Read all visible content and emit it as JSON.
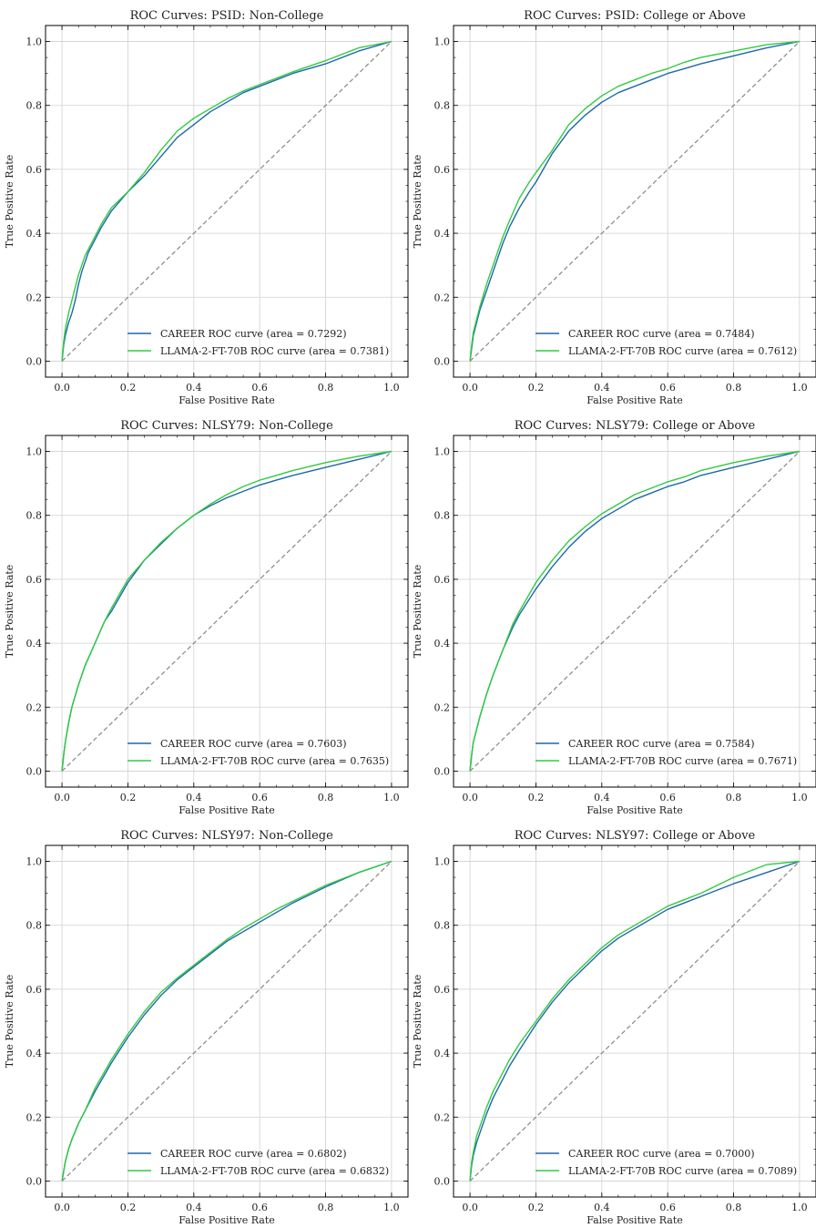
{
  "chart_data": [
    {
      "type": "line",
      "title": "ROC Curves: PSID: Non-College",
      "xlabel": "False Positive Rate",
      "ylabel": "True Positive Rate",
      "xlim": [
        -0.05,
        1.05
      ],
      "ylim": [
        -0.05,
        1.05
      ],
      "xticks": [
        "0.0",
        "0.2",
        "0.4",
        "0.6",
        "0.8",
        "1.0"
      ],
      "yticks": [
        "0.0",
        "0.2",
        "0.4",
        "0.6",
        "0.8",
        "1.0"
      ],
      "grid": true,
      "legend_position": "lower right",
      "diagonal": {
        "x": [
          0,
          1
        ],
        "y": [
          0,
          1
        ],
        "style": "dashed",
        "color": "#888888"
      },
      "series": [
        {
          "name": "CAREER ROC curve (area = 0.7292)",
          "color": "#2166ac",
          "x": [
            0,
            0.005,
            0.01,
            0.02,
            0.03,
            0.04,
            0.05,
            0.06,
            0.07,
            0.08,
            0.1,
            0.12,
            0.15,
            0.2,
            0.25,
            0.3,
            0.35,
            0.4,
            0.45,
            0.5,
            0.55,
            0.6,
            0.65,
            0.7,
            0.8,
            0.9,
            1.0
          ],
          "y": [
            0,
            0.05,
            0.08,
            0.12,
            0.15,
            0.19,
            0.24,
            0.28,
            0.31,
            0.34,
            0.38,
            0.42,
            0.47,
            0.53,
            0.58,
            0.64,
            0.7,
            0.74,
            0.78,
            0.81,
            0.84,
            0.86,
            0.88,
            0.9,
            0.93,
            0.97,
            1.0
          ]
        },
        {
          "name": "LLAMA-2-FT-70B ROC curve (area = 0.7381)",
          "color": "#2ecc40",
          "x": [
            0,
            0.005,
            0.01,
            0.02,
            0.03,
            0.04,
            0.05,
            0.06,
            0.07,
            0.08,
            0.1,
            0.12,
            0.15,
            0.2,
            0.25,
            0.3,
            0.35,
            0.4,
            0.45,
            0.5,
            0.55,
            0.6,
            0.65,
            0.7,
            0.8,
            0.9,
            1.0
          ],
          "y": [
            0,
            0.06,
            0.1,
            0.15,
            0.19,
            0.23,
            0.27,
            0.3,
            0.33,
            0.35,
            0.39,
            0.43,
            0.48,
            0.53,
            0.59,
            0.66,
            0.72,
            0.76,
            0.79,
            0.82,
            0.845,
            0.865,
            0.885,
            0.905,
            0.94,
            0.98,
            1.0
          ]
        }
      ]
    },
    {
      "type": "line",
      "title": "ROC Curves: PSID: College or Above",
      "xlabel": "False Positive Rate",
      "ylabel": "True Positive Rate",
      "xlim": [
        -0.05,
        1.05
      ],
      "ylim": [
        -0.05,
        1.05
      ],
      "xticks": [
        "0.0",
        "0.2",
        "0.4",
        "0.6",
        "0.8",
        "1.0"
      ],
      "yticks": [
        "0.0",
        "0.2",
        "0.4",
        "0.6",
        "0.8",
        "1.0"
      ],
      "grid": true,
      "legend_position": "lower right",
      "diagonal": {
        "x": [
          0,
          1
        ],
        "y": [
          0,
          1
        ],
        "style": "dashed",
        "color": "#888888"
      },
      "series": [
        {
          "name": "CAREER ROC curve (area = 0.7484)",
          "color": "#2166ac",
          "x": [
            0,
            0.005,
            0.01,
            0.02,
            0.03,
            0.05,
            0.07,
            0.1,
            0.12,
            0.15,
            0.18,
            0.2,
            0.25,
            0.3,
            0.35,
            0.4,
            0.45,
            0.5,
            0.55,
            0.6,
            0.65,
            0.7,
            0.8,
            0.9,
            1.0
          ],
          "y": [
            0,
            0.04,
            0.08,
            0.12,
            0.16,
            0.22,
            0.28,
            0.37,
            0.42,
            0.48,
            0.53,
            0.56,
            0.65,
            0.72,
            0.77,
            0.81,
            0.84,
            0.86,
            0.88,
            0.9,
            0.915,
            0.93,
            0.955,
            0.98,
            1.0
          ]
        },
        {
          "name": "LLAMA-2-FT-70B ROC curve (area = 0.7612)",
          "color": "#2ecc40",
          "x": [
            0,
            0.005,
            0.01,
            0.02,
            0.03,
            0.05,
            0.07,
            0.1,
            0.12,
            0.15,
            0.18,
            0.2,
            0.25,
            0.3,
            0.35,
            0.4,
            0.45,
            0.5,
            0.55,
            0.6,
            0.65,
            0.7,
            0.8,
            0.9,
            1.0
          ],
          "y": [
            0,
            0.05,
            0.09,
            0.13,
            0.17,
            0.24,
            0.3,
            0.39,
            0.44,
            0.51,
            0.56,
            0.59,
            0.66,
            0.74,
            0.79,
            0.83,
            0.86,
            0.88,
            0.9,
            0.915,
            0.935,
            0.95,
            0.97,
            0.99,
            1.0
          ]
        }
      ]
    },
    {
      "type": "line",
      "title": "ROC Curves: NLSY79: Non-College",
      "xlabel": "False Positive Rate",
      "ylabel": "True Positive Rate",
      "xlim": [
        -0.05,
        1.05
      ],
      "ylim": [
        -0.05,
        1.05
      ],
      "xticks": [
        "0.0",
        "0.2",
        "0.4",
        "0.6",
        "0.8",
        "1.0"
      ],
      "yticks": [
        "0.0",
        "0.2",
        "0.4",
        "0.6",
        "0.8",
        "1.0"
      ],
      "grid": true,
      "legend_position": "lower right",
      "diagonal": {
        "x": [
          0,
          1
        ],
        "y": [
          0,
          1
        ],
        "style": "dashed",
        "color": "#888888"
      },
      "series": [
        {
          "name": "CAREER ROC curve (area = 0.7603)",
          "color": "#2166ac",
          "x": [
            0,
            0.005,
            0.01,
            0.02,
            0.03,
            0.05,
            0.07,
            0.1,
            0.13,
            0.15,
            0.2,
            0.25,
            0.3,
            0.35,
            0.4,
            0.45,
            0.5,
            0.55,
            0.6,
            0.65,
            0.7,
            0.8,
            0.9,
            1.0
          ],
          "y": [
            0,
            0.05,
            0.09,
            0.15,
            0.2,
            0.27,
            0.33,
            0.4,
            0.47,
            0.5,
            0.59,
            0.66,
            0.71,
            0.76,
            0.8,
            0.83,
            0.855,
            0.875,
            0.895,
            0.91,
            0.925,
            0.95,
            0.975,
            1.0
          ]
        },
        {
          "name": "LLAMA-2-FT-70B ROC curve (area = 0.7635)",
          "color": "#2ecc40",
          "x": [
            0,
            0.005,
            0.01,
            0.02,
            0.03,
            0.05,
            0.07,
            0.1,
            0.13,
            0.15,
            0.2,
            0.25,
            0.3,
            0.35,
            0.4,
            0.45,
            0.5,
            0.55,
            0.6,
            0.65,
            0.7,
            0.8,
            0.9,
            1.0
          ],
          "y": [
            0,
            0.05,
            0.09,
            0.15,
            0.2,
            0.27,
            0.33,
            0.4,
            0.47,
            0.51,
            0.6,
            0.66,
            0.715,
            0.76,
            0.8,
            0.835,
            0.865,
            0.89,
            0.91,
            0.925,
            0.94,
            0.965,
            0.985,
            1.0
          ]
        }
      ]
    },
    {
      "type": "line",
      "title": "ROC Curves: NLSY79: College or Above",
      "xlabel": "False Positive Rate",
      "ylabel": "True Positive Rate",
      "xlim": [
        -0.05,
        1.05
      ],
      "ylim": [
        -0.05,
        1.05
      ],
      "xticks": [
        "0.0",
        "0.2",
        "0.4",
        "0.6",
        "0.8",
        "1.0"
      ],
      "yticks": [
        "0.0",
        "0.2",
        "0.4",
        "0.6",
        "0.8",
        "1.0"
      ],
      "grid": true,
      "legend_position": "lower right",
      "diagonal": {
        "x": [
          0,
          1
        ],
        "y": [
          0,
          1
        ],
        "style": "dashed",
        "color": "#888888"
      },
      "series": [
        {
          "name": "CAREER ROC curve (area = 0.7584)",
          "color": "#2166ac",
          "x": [
            0,
            0.005,
            0.01,
            0.02,
            0.03,
            0.05,
            0.07,
            0.1,
            0.13,
            0.15,
            0.2,
            0.25,
            0.3,
            0.35,
            0.4,
            0.45,
            0.5,
            0.55,
            0.6,
            0.65,
            0.7,
            0.8,
            0.9,
            1.0
          ],
          "y": [
            0,
            0.05,
            0.09,
            0.13,
            0.17,
            0.24,
            0.3,
            0.38,
            0.45,
            0.49,
            0.57,
            0.64,
            0.7,
            0.75,
            0.79,
            0.82,
            0.85,
            0.87,
            0.89,
            0.905,
            0.925,
            0.95,
            0.975,
            1.0
          ]
        },
        {
          "name": "LLAMA-2-FT-70B ROC curve (area = 0.7671)",
          "color": "#2ecc40",
          "x": [
            0,
            0.005,
            0.01,
            0.02,
            0.03,
            0.05,
            0.07,
            0.1,
            0.13,
            0.15,
            0.2,
            0.25,
            0.3,
            0.35,
            0.4,
            0.45,
            0.5,
            0.55,
            0.6,
            0.65,
            0.7,
            0.8,
            0.9,
            1.0
          ],
          "y": [
            0,
            0.05,
            0.09,
            0.13,
            0.17,
            0.24,
            0.3,
            0.38,
            0.46,
            0.5,
            0.59,
            0.66,
            0.72,
            0.765,
            0.805,
            0.835,
            0.865,
            0.885,
            0.905,
            0.92,
            0.94,
            0.965,
            0.985,
            1.0
          ]
        }
      ]
    },
    {
      "type": "line",
      "title": "ROC Curves: NLSY97: Non-College",
      "xlabel": "False Positive Rate",
      "ylabel": "True Positive Rate",
      "xlim": [
        -0.05,
        1.05
      ],
      "ylim": [
        -0.05,
        1.05
      ],
      "xticks": [
        "0.0",
        "0.2",
        "0.4",
        "0.6",
        "0.8",
        "1.0"
      ],
      "yticks": [
        "0.0",
        "0.2",
        "0.4",
        "0.6",
        "0.8",
        "1.0"
      ],
      "grid": true,
      "legend_position": "lower right",
      "diagonal": {
        "x": [
          0,
          1
        ],
        "y": [
          0,
          1
        ],
        "style": "dashed",
        "color": "#888888"
      },
      "series": [
        {
          "name": "CAREER ROC curve (area = 0.6802)",
          "color": "#2166ac",
          "x": [
            0,
            0.005,
            0.01,
            0.02,
            0.03,
            0.05,
            0.07,
            0.1,
            0.15,
            0.2,
            0.25,
            0.3,
            0.35,
            0.4,
            0.45,
            0.5,
            0.55,
            0.6,
            0.65,
            0.7,
            0.8,
            0.9,
            1.0
          ],
          "y": [
            0,
            0.03,
            0.06,
            0.1,
            0.13,
            0.18,
            0.22,
            0.28,
            0.37,
            0.45,
            0.52,
            0.58,
            0.63,
            0.67,
            0.71,
            0.75,
            0.78,
            0.81,
            0.84,
            0.87,
            0.92,
            0.965,
            1.0
          ]
        },
        {
          "name": "LLAMA-2-FT-70B ROC curve (area = 0.6832)",
          "color": "#2ecc40",
          "x": [
            0,
            0.005,
            0.01,
            0.02,
            0.03,
            0.05,
            0.07,
            0.1,
            0.15,
            0.2,
            0.25,
            0.3,
            0.35,
            0.4,
            0.45,
            0.5,
            0.55,
            0.6,
            0.65,
            0.7,
            0.8,
            0.9,
            1.0
          ],
          "y": [
            0,
            0.03,
            0.06,
            0.1,
            0.13,
            0.18,
            0.22,
            0.29,
            0.38,
            0.46,
            0.53,
            0.59,
            0.635,
            0.675,
            0.715,
            0.755,
            0.79,
            0.82,
            0.85,
            0.875,
            0.925,
            0.965,
            1.0
          ]
        }
      ]
    },
    {
      "type": "line",
      "title": "ROC Curves: NLSY97: College or Above",
      "xlabel": "False Positive Rate",
      "ylabel": "True Positive Rate",
      "xlim": [
        -0.05,
        1.05
      ],
      "ylim": [
        -0.05,
        1.05
      ],
      "xticks": [
        "0.0",
        "0.2",
        "0.4",
        "0.6",
        "0.8",
        "1.0"
      ],
      "yticks": [
        "0.0",
        "0.2",
        "0.4",
        "0.6",
        "0.8",
        "1.0"
      ],
      "grid": true,
      "legend_position": "lower right",
      "diagonal": {
        "x": [
          0,
          1
        ],
        "y": [
          0,
          1
        ],
        "style": "dashed",
        "color": "#888888"
      },
      "series": [
        {
          "name": "CAREER ROC curve (area = 0.7000)",
          "color": "#2166ac",
          "x": [
            0,
            0.005,
            0.01,
            0.02,
            0.03,
            0.05,
            0.07,
            0.1,
            0.12,
            0.15,
            0.2,
            0.25,
            0.3,
            0.35,
            0.4,
            0.45,
            0.5,
            0.55,
            0.6,
            0.65,
            0.7,
            0.8,
            0.9,
            1.0
          ],
          "y": [
            0,
            0.05,
            0.08,
            0.12,
            0.15,
            0.21,
            0.26,
            0.32,
            0.36,
            0.41,
            0.49,
            0.56,
            0.62,
            0.67,
            0.72,
            0.76,
            0.79,
            0.82,
            0.85,
            0.87,
            0.89,
            0.93,
            0.965,
            1.0
          ]
        },
        {
          "name": "LLAMA-2-FT-70B ROC curve (area = 0.7089)",
          "color": "#2ecc40",
          "x": [
            0,
            0.005,
            0.01,
            0.02,
            0.03,
            0.05,
            0.07,
            0.1,
            0.12,
            0.15,
            0.2,
            0.25,
            0.3,
            0.35,
            0.4,
            0.45,
            0.5,
            0.55,
            0.6,
            0.65,
            0.7,
            0.8,
            0.9,
            1.0
          ],
          "y": [
            0,
            0.06,
            0.09,
            0.14,
            0.17,
            0.23,
            0.28,
            0.34,
            0.38,
            0.43,
            0.5,
            0.57,
            0.63,
            0.68,
            0.73,
            0.77,
            0.8,
            0.83,
            0.86,
            0.88,
            0.9,
            0.95,
            0.99,
            1.0
          ]
        }
      ]
    }
  ]
}
